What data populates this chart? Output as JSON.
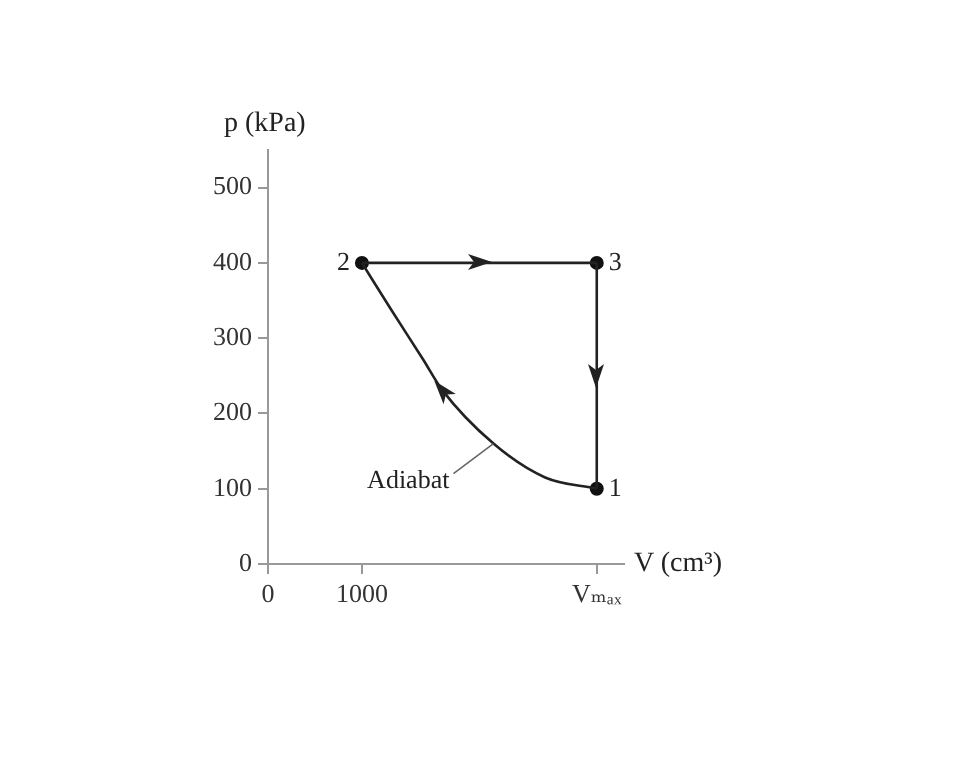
{
  "chart_data": {
    "type": "line",
    "xlabel": "V (cm³)",
    "ylabel": "p (kPa)",
    "series": [
      {
        "type": "line",
        "color": "#222222",
        "marker": "none",
        "x": [
          3500,
          2950,
          2400,
          1850,
          1650,
          1300,
          1000
        ],
        "values": [
          100,
          115,
          160,
          232,
          272,
          340,
          400
        ]
      },
      {
        "type": "line",
        "color": "#222222",
        "marker": "none",
        "x": [
          1000,
          3500
        ],
        "values": [
          400,
          400
        ]
      },
      {
        "type": "line",
        "color": "#222222",
        "marker": "none",
        "x": [
          3500,
          3500
        ],
        "values": [
          400,
          100
        ]
      },
      {
        "type": "scatter",
        "color": "#111111",
        "marker": "circle",
        "x": [
          3500,
          1000,
          3500
        ],
        "values": [
          100,
          400,
          400
        ]
      }
    ],
    "xlim": [
      0,
      3790
    ],
    "xticks": [
      0,
      1000,
      {
        "value": 3500,
        "label": "Vₘₐₓ"
      }
    ],
    "ylim": [
      0,
      550
    ],
    "yticks": [
      0,
      100,
      200,
      300,
      400,
      500
    ],
    "grid": false,
    "legend": false,
    "annotations": [
      {
        "text": "1",
        "x": 3500,
        "y": 100
      },
      {
        "text": "2",
        "x": 1000,
        "y": 400
      },
      {
        "text": "3",
        "x": 3500,
        "y": 400
      },
      {
        "text": "Adiabat",
        "x": 2400,
        "y": 160
      }
    ]
  }
}
